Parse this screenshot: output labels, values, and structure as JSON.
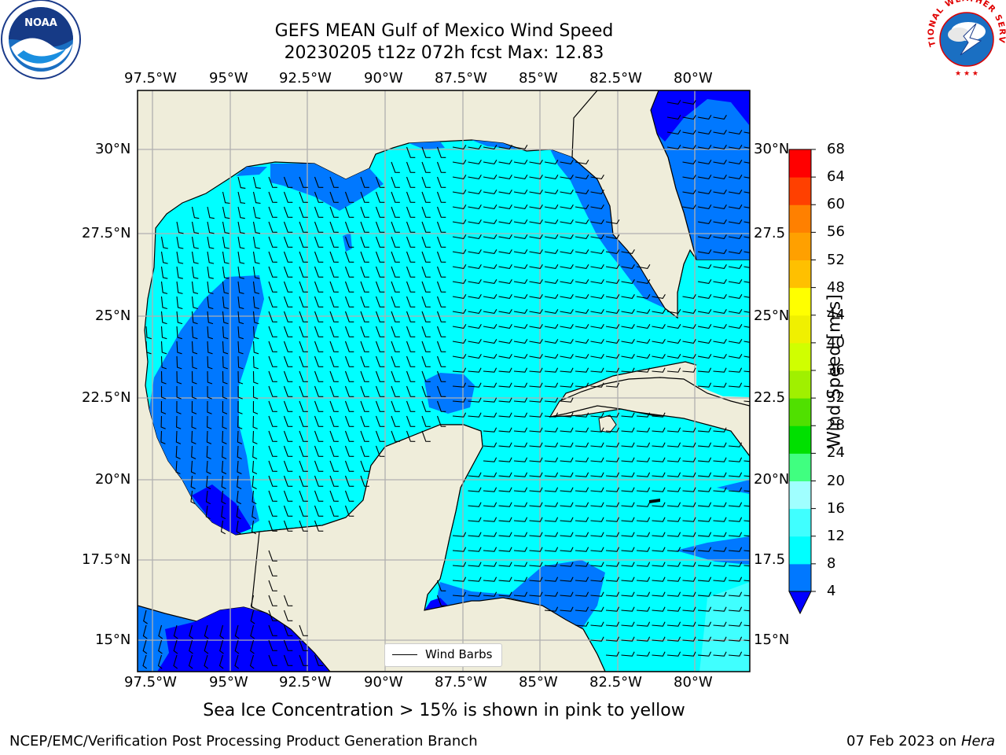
{
  "title": "GEFS MEAN Gulf of Mexico Wind Speed",
  "subtitle_run": "20230205 t12z 072h fcst   Max: 12.83",
  "lon_labels": [
    "97.5°W",
    "95°W",
    "92.5°W",
    "90°W",
    "87.5°W",
    "85°W",
    "82.5°W",
    "80°W"
  ],
  "lat_labels_left": [
    "30°N",
    "27.5°N",
    "25°N",
    "22.5°N",
    "20°N",
    "17.5°N",
    "15°N"
  ],
  "lat_labels_right": [
    "30°N",
    "27.5",
    "25°N",
    "22.5",
    "20°N",
    "17.5",
    "15°N"
  ],
  "lon_range": [
    -98,
    -78
  ],
  "lat_range": [
    14,
    31.5
  ],
  "legend_label": "Wind Barbs",
  "colorbar": {
    "label": "Wind Speed [m/s]",
    "ticks": [
      "4",
      "8",
      "12",
      "16",
      "20",
      "24",
      "28",
      "32",
      "36",
      "40",
      "44",
      "48",
      "52",
      "56",
      "60",
      "64",
      "68"
    ],
    "colors": [
      "#0000ff",
      "#0078ff",
      "#00ffff",
      "#40ffff",
      "#a0ffff",
      "#40ff80",
      "#00e000",
      "#50e000",
      "#a0f000",
      "#d0ff00",
      "#f0f000",
      "#ffff00",
      "#ffc000",
      "#ffa000",
      "#ff8000",
      "#ff4000",
      "#ff0000"
    ]
  },
  "note": "Sea Ice Concentration > 15% is shown in pink to yellow",
  "footer_left": "NCEP/EMC/Verification Post Processing Product Generation Branch",
  "footer_date": "07 Feb 2023 on",
  "footer_host": "Hera",
  "colors": {
    "land": "#efedda",
    "ocean_8_12": "#00ffff",
    "ocean_4_8": "#0078ff",
    "ocean_lt4": "#0000ff",
    "ocean_12_16": "#40ffff"
  },
  "logos": {
    "left": "NOAA",
    "right": "NATIONAL WEATHER SERVICE"
  }
}
